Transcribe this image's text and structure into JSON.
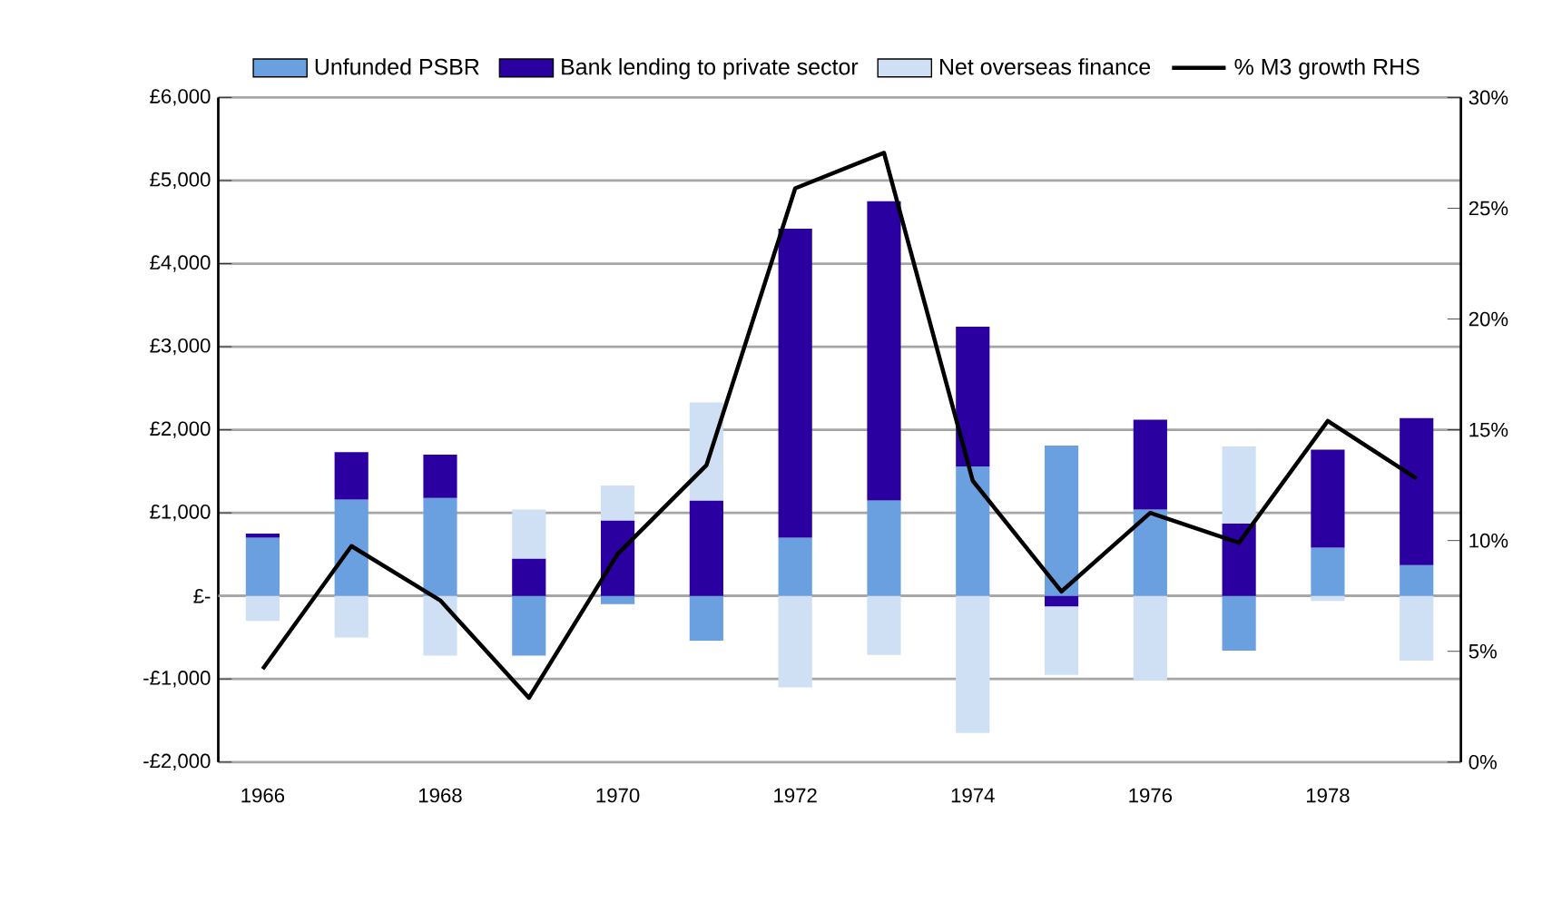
{
  "chart_data": {
    "type": "bar",
    "stacked": true,
    "categories": [
      "1966",
      null,
      "1968",
      null,
      "1970",
      null,
      "1972",
      null,
      "1974",
      null,
      "1976",
      null,
      "1978",
      null
    ],
    "series": [
      {
        "name": "Unfunded PSBR",
        "color": "#6aa0e0",
        "values": [
          700,
          1160,
          1180,
          -720,
          -100,
          -540,
          700,
          1150,
          1560,
          1810,
          1040,
          -660,
          580,
          370
        ]
      },
      {
        "name": "Bank lending to private sector",
        "color": "#2a00a0",
        "values": [
          50,
          570,
          520,
          450,
          910,
          1150,
          3720,
          3600,
          1680,
          -130,
          1080,
          870,
          1180,
          1770
        ]
      },
      {
        "name": "Net overseas finance",
        "color": "#cfe0f4",
        "values": [
          -300,
          -500,
          -720,
          590,
          420,
          1180,
          -1100,
          -710,
          -1650,
          -820,
          -1020,
          930,
          -60,
          -780
        ]
      },
      {
        "name": "% M3 growth RHS",
        "type": "line",
        "axis": "y2",
        "color": "#000000",
        "values": [
          4.2,
          9.75,
          7.3,
          2.9,
          9.4,
          13.4,
          25.9,
          27.5,
          12.7,
          7.7,
          11.25,
          9.9,
          15.4,
          12.8
        ]
      }
    ],
    "ylim": [
      -2000,
      6000
    ],
    "yticks": [
      {
        "value": -2000,
        "label": "-£2,000"
      },
      {
        "value": -1000,
        "label": "-£1,000"
      },
      {
        "value": 0,
        "label": "£-"
      },
      {
        "value": 1000,
        "label": "£1,000"
      },
      {
        "value": 2000,
        "label": "£2,000"
      },
      {
        "value": 3000,
        "label": "£3,000"
      },
      {
        "value": 4000,
        "label": "£4,000"
      },
      {
        "value": 5000,
        "label": "£5,000"
      },
      {
        "value": 6000,
        "label": "£6,000"
      }
    ],
    "y2lim": [
      0,
      30
    ],
    "y2ticks": [
      {
        "value": 0,
        "label": "0%"
      },
      {
        "value": 5,
        "label": "5%"
      },
      {
        "value": 10,
        "label": "10%"
      },
      {
        "value": 15,
        "label": "15%"
      },
      {
        "value": 20,
        "label": "20%"
      },
      {
        "value": 25,
        "label": "25%"
      },
      {
        "value": 30,
        "label": "30%"
      }
    ],
    "grid": "y",
    "legend": "top"
  }
}
